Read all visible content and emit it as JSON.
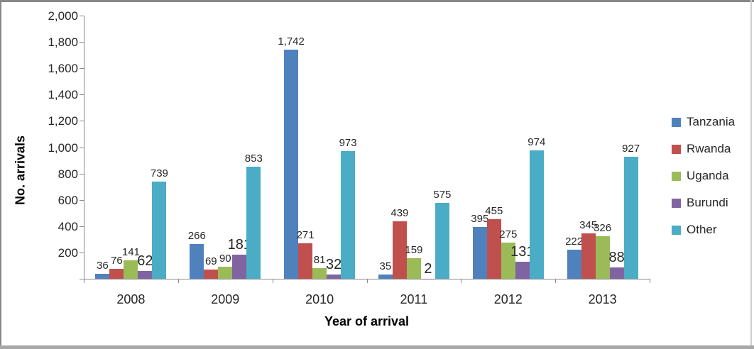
{
  "chart_data": {
    "type": "bar",
    "title": "",
    "xlabel": "Year of arrival",
    "ylabel": "No. arrivals",
    "categories": [
      "2008",
      "2009",
      "2010",
      "2011",
      "2012",
      "2013"
    ],
    "series": [
      {
        "name": "Tanzania",
        "color": "#4f81bd",
        "values": [
          36,
          266,
          1742,
          35,
          395,
          222
        ],
        "label_large": false
      },
      {
        "name": "Rwanda",
        "color": "#c0504d",
        "values": [
          76,
          69,
          271,
          439,
          455,
          345
        ],
        "label_large": false
      },
      {
        "name": "Uganda",
        "color": "#9bbb59",
        "values": [
          141,
          90,
          81,
          159,
          275,
          326
        ],
        "label_large": false
      },
      {
        "name": "Burundi",
        "color": "#8064a2",
        "values": [
          62,
          181,
          32,
          2,
          131,
          88
        ],
        "label_large": true
      },
      {
        "name": "Other",
        "color": "#4bacc6",
        "values": [
          739,
          853,
          973,
          575,
          974,
          927
        ],
        "label_large": false
      }
    ],
    "ylim": [
      0,
      2000
    ],
    "ytick_step": 200,
    "ytick_labels": [
      "200",
      "400",
      "600",
      "800",
      "1,000",
      "1,200",
      "1,400",
      "1,600",
      "1,800",
      "2,000"
    ],
    "grid": false,
    "data_labels": true,
    "legend_position": "right"
  },
  "colors": {
    "axis": "#8a8a8a",
    "tick_text": "#262626",
    "label_text": "#262626",
    "frame_top": "#878787",
    "frame_left": "#878787",
    "frame_right": "#cfcfcf",
    "frame_bottom": "#a8a8a8",
    "background": "#ffffff"
  }
}
